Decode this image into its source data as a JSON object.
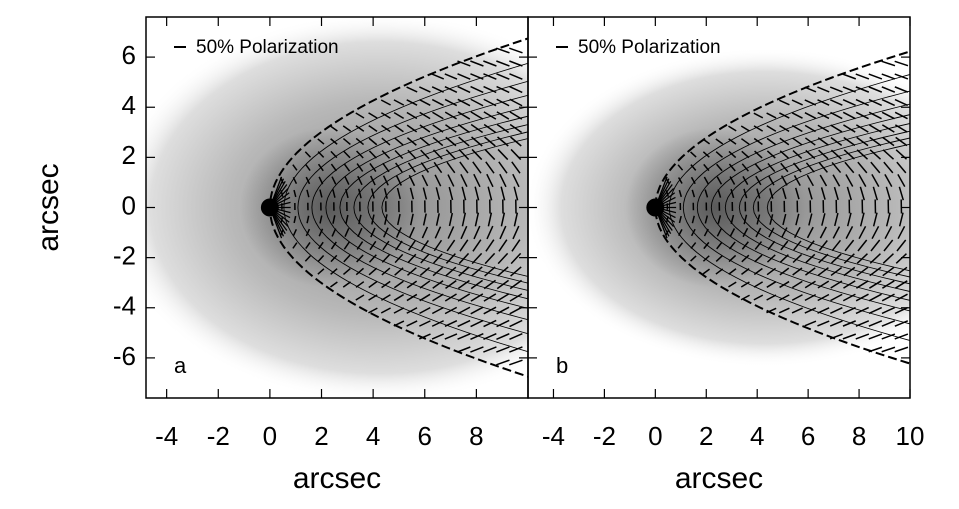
{
  "chart_data": [
    {
      "type": "image",
      "xlabel": "arcsec",
      "ylabel": "arcsec",
      "legend": "50% Polarization",
      "panel_label": "a",
      "xlim": [
        -4.8,
        10
      ],
      "ylim": [
        -7.6,
        7.6
      ],
      "xticks": [
        -4,
        -2,
        0,
        2,
        4,
        6,
        8
      ],
      "yticks": [
        -6,
        -4,
        -2,
        0,
        2,
        4,
        6
      ]
    },
    {
      "type": "image",
      "xlabel": "arcsec",
      "legend": "50% Polarization",
      "panel_label": "b",
      "xlim": [
        -5,
        10
      ],
      "ylim": [
        -7.6,
        7.6
      ],
      "xticks": [
        -4,
        -2,
        0,
        2,
        4,
        6,
        8,
        10
      ],
      "yticks": [
        -6,
        -4,
        -2,
        0,
        2,
        4,
        6
      ]
    }
  ]
}
